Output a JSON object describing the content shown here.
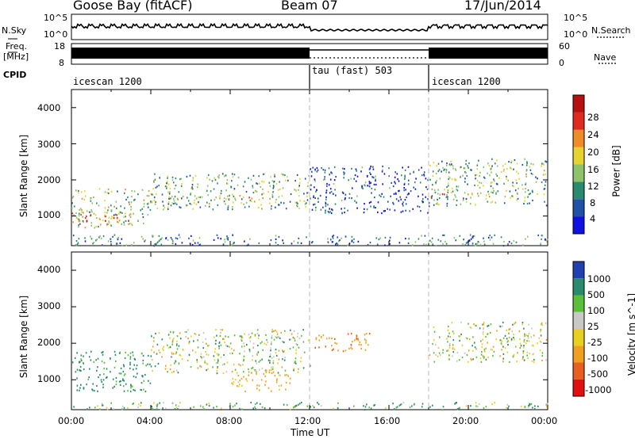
{
  "header": {
    "station": "Goose Bay (fitACF)",
    "beam": "Beam 07",
    "date": "17/Jun/2014"
  },
  "noise_panel": {
    "left_label": "N.Sky",
    "right_label": "N.Search",
    "tick_top": "10^5",
    "tick_bottom": "10^0"
  },
  "freq_panel": {
    "left_label_1": "Freq.",
    "left_label_2": "[MHz]",
    "right_label": "Nave",
    "freq_tick_top": "18",
    "freq_tick_bottom": "8",
    "nave_tick_top": "60",
    "nave_tick_bottom": "0"
  },
  "cpid": {
    "label": "CPID",
    "segments": [
      {
        "name": "icescan 1200",
        "start_h": 0,
        "end_h": 12
      },
      {
        "name": "tau (fast) 503",
        "start_h": 12,
        "end_h": 18
      },
      {
        "name": "icescan 1200",
        "start_h": 18,
        "end_h": 24
      }
    ]
  },
  "axes": {
    "ylabel": "Slant Range [km]",
    "xlabel": "Time UT",
    "y_ticks": [
      "1000",
      "2000",
      "3000",
      "4000"
    ],
    "x_ticks": [
      "00:00",
      "04:00",
      "08:00",
      "12:00",
      "16:00",
      "20:00",
      "00:00"
    ]
  },
  "power_colorbar": {
    "label": "Power [dB]",
    "ticks": [
      "4",
      "8",
      "12",
      "16",
      "20",
      "24",
      "28"
    ],
    "colors": [
      "#1010e0",
      "#2050a8",
      "#2a8a70",
      "#8ec36c",
      "#e5d330",
      "#f08c28",
      "#e02a20",
      "#b81010"
    ]
  },
  "velocity_colorbar": {
    "label": "Velocity [m s^-1]",
    "ticks": [
      "1000",
      "500",
      "100",
      "25",
      "-25",
      "-100",
      "-500",
      "-1000"
    ],
    "colors": [
      "#2040b0",
      "#2a8a6e",
      "#5cbf3c",
      "#c8c8c8",
      "#e8d020",
      "#f0a020",
      "#e86020",
      "#e01010"
    ]
  },
  "chart_data": [
    {
      "type": "heatmap",
      "title": "Power [dB]",
      "xlabel": "Time UT",
      "ylabel": "Slant Range [km]",
      "xlim_hours": [
        0,
        24
      ],
      "ylim_km": [
        180,
        4500
      ],
      "zlim": [
        0,
        30
      ],
      "scatter_regions": [
        {
          "t": [
            0,
            4
          ],
          "range_km": [
            700,
            1800
          ],
          "value": 14
        },
        {
          "t": [
            0,
            3
          ],
          "range_km": [
            800,
            1100
          ],
          "value": 22
        },
        {
          "t": [
            4,
            12
          ],
          "range_km": [
            1200,
            2200
          ],
          "value": 12
        },
        {
          "t": [
            5,
            10
          ],
          "range_km": [
            1500,
            1600
          ],
          "value": 18
        },
        {
          "t": [
            12,
            18
          ],
          "range_km": [
            1100,
            2400
          ],
          "value": 5
        },
        {
          "t": [
            18,
            24
          ],
          "range_km": [
            1300,
            2600
          ],
          "value": 12
        },
        {
          "t": [
            18,
            22
          ],
          "range_km": [
            1550,
            1650
          ],
          "value": 18
        },
        {
          "t": [
            0,
            24
          ],
          "range_km": [
            200,
            500
          ],
          "value": 8
        }
      ]
    },
    {
      "type": "heatmap",
      "title": "Velocity [m s^-1]",
      "xlabel": "Time UT",
      "ylabel": "Slant Range [km]",
      "xlim_hours": [
        0,
        24
      ],
      "ylim_km": [
        180,
        4500
      ],
      "zlim": [
        -1000,
        1000
      ],
      "scatter_regions": [
        {
          "t": [
            0,
            4
          ],
          "range_km": [
            700,
            1800
          ],
          "value": 200
        },
        {
          "t": [
            4,
            12
          ],
          "range_km": [
            1200,
            2400
          ],
          "value": 0
        },
        {
          "t": [
            8,
            11
          ],
          "range_km": [
            700,
            1300
          ],
          "value": -150
        },
        {
          "t": [
            12,
            15
          ],
          "range_km": [
            1800,
            2300
          ],
          "value": -400
        },
        {
          "t": [
            18,
            24
          ],
          "range_km": [
            1500,
            2600
          ],
          "value": 0
        },
        {
          "t": [
            0,
            24
          ],
          "range_km": [
            200,
            400
          ],
          "value": 80
        }
      ]
    }
  ]
}
